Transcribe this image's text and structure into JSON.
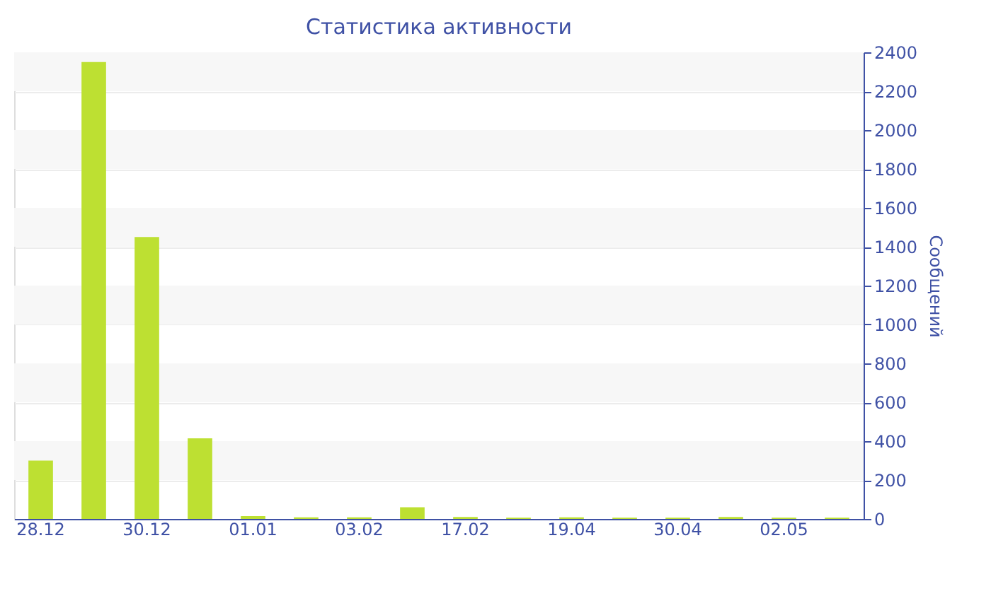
{
  "chart_data": {
    "type": "bar",
    "title": "Статистика активности",
    "ylabel": "Сообщений",
    "categories": [
      "28.12",
      null,
      "30.12",
      null,
      "01.01",
      null,
      "03.02",
      null,
      "17.02",
      null,
      "19.04",
      null,
      "30.04",
      null,
      "02.05",
      null
    ],
    "values": [
      300,
      2350,
      1450,
      415,
      15,
      8,
      8,
      60,
      10,
      6,
      8,
      6,
      6,
      10,
      6,
      6
    ],
    "color": "#bde032",
    "ylim": [
      0,
      2400
    ],
    "yticks": [
      0,
      200,
      400,
      600,
      800,
      1000,
      1200,
      1400,
      1600,
      1800,
      2000,
      2200,
      2400
    ],
    "grid": "y"
  }
}
